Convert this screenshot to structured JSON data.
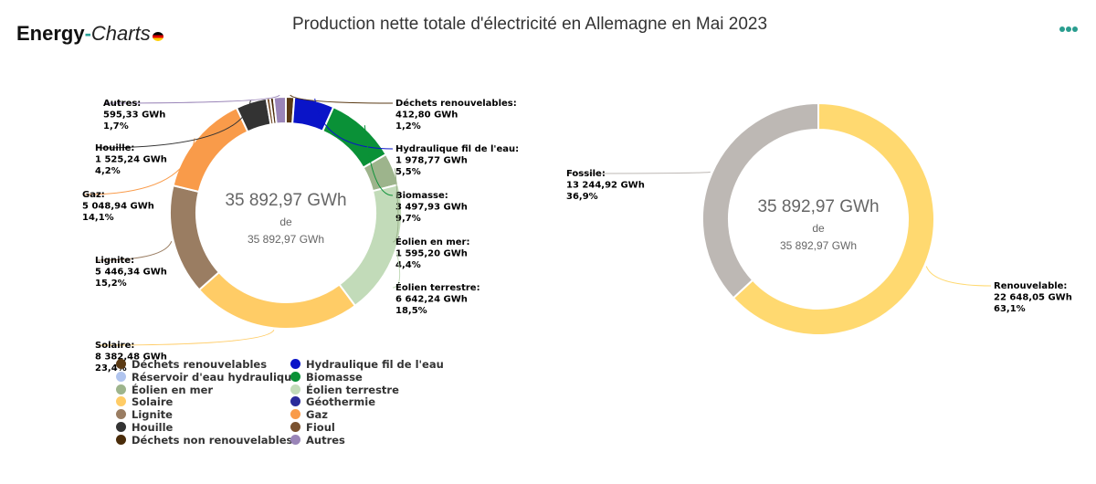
{
  "header": {
    "logo_energy": "Energy",
    "logo_dash": "-",
    "logo_charts": "Charts",
    "title": "Production nette totale d'électricité en Allemagne en Mai 2023",
    "menu_icon": "more-dots-icon"
  },
  "chart_data": [
    {
      "type": "pie",
      "variant": "donut",
      "center": {
        "value": "35 892,97 GWh",
        "de": "de",
        "total": "35 892,97 GWh"
      },
      "slices": [
        {
          "name": "Déchets renouvelables",
          "label": "Déchets renouvelables:",
          "gwh": "412,80 GWh",
          "pct": "1,2%",
          "value": 412.8,
          "color": "#5a3a14"
        },
        {
          "name": "Hydraulique fil de l'eau",
          "label": "Hydraulique fil de l'eau:",
          "gwh": "1 978,77 GWh",
          "pct": "5,5%",
          "value": 1978.77,
          "color": "#0a14c8"
        },
        {
          "name": "Biomasse",
          "label": "Biomasse:",
          "gwh": "3 497,93 GWh",
          "pct": "9,7%",
          "value": 3497.93,
          "color": "#0a9137"
        },
        {
          "name": "Éolien en mer",
          "label": "Éolien en mer:",
          "gwh": "1 595,20 GWh",
          "pct": "4,4%",
          "value": 1595.2,
          "color": "#9db48c"
        },
        {
          "name": "Éolien terrestre",
          "label": "Éolien terrestre:",
          "gwh": "6 642,24 GWh",
          "pct": "18,5%",
          "value": 6642.24,
          "color": "#c2dbb9"
        },
        {
          "name": "Solaire",
          "label": "Solaire:",
          "gwh": "8 382,48 GWh",
          "pct": "23,4%",
          "value": 8382.48,
          "color": "#ffcc66"
        },
        {
          "name": "Lignite",
          "label": "Lignite:",
          "gwh": "5 446,34 GWh",
          "pct": "15,2%",
          "value": 5446.34,
          "color": "#9a7d62"
        },
        {
          "name": "Gaz",
          "label": "Gaz:",
          "gwh": "5 048,94 GWh",
          "pct": "14,1%",
          "value": 5048.94,
          "color": "#f99b4a"
        },
        {
          "name": "Houille",
          "label": "Houille:",
          "gwh": "1 525,24 GWh",
          "pct": "4,2%",
          "value": 1525.24,
          "color": "#333333"
        },
        {
          "name": "Fioul",
          "label": "",
          "gwh": "",
          "pct": "",
          "value": 180,
          "color": "#7a5230"
        },
        {
          "name": "Déchets non renouvelables",
          "label": "",
          "gwh": "",
          "pct": "",
          "value": 180,
          "color": "#4a2c0a"
        },
        {
          "name": "Autres",
          "label": "Autres:",
          "gwh": "595,33 GWh",
          "pct": "1,7%",
          "value": 595.33,
          "color": "#9a85b8"
        }
      ]
    },
    {
      "type": "pie",
      "variant": "donut",
      "center": {
        "value": "35 892,97 GWh",
        "de": "de",
        "total": "35 892,97 GWh"
      },
      "slices": [
        {
          "name": "Renouvelable",
          "label": "Renouvelable:",
          "gwh": "22 648,05 GWh",
          "pct": "63,1%",
          "value": 22648.05,
          "color": "#ffd970"
        },
        {
          "name": "Fossile",
          "label": "Fossile:",
          "gwh": "13 244,92 GWh",
          "pct": "36,9%",
          "value": 13244.92,
          "color": "#bdb8b4"
        }
      ]
    }
  ],
  "legend": [
    {
      "label": "Déchets renouvelables",
      "color": "#5a3a14"
    },
    {
      "label": "Hydraulique fil de l'eau",
      "color": "#0a14c8"
    },
    {
      "label": "Réservoir d'eau hydraulique",
      "color": "#b0c4ee"
    },
    {
      "label": "Biomasse",
      "color": "#0a9137"
    },
    {
      "label": "Éolien en mer",
      "color": "#9db48c"
    },
    {
      "label": "Éolien terrestre",
      "color": "#c2dbb9"
    },
    {
      "label": "Solaire",
      "color": "#ffcc66"
    },
    {
      "label": "Géothermie",
      "color": "#2b2b9a"
    },
    {
      "label": "Lignite",
      "color": "#9a7d62"
    },
    {
      "label": "Gaz",
      "color": "#f99b4a"
    },
    {
      "label": "Houille",
      "color": "#333333"
    },
    {
      "label": "Fioul",
      "color": "#7a5230"
    },
    {
      "label": "Déchets non renouvelables",
      "color": "#4a2c0a"
    },
    {
      "label": "Autres",
      "color": "#9a85b8"
    }
  ]
}
